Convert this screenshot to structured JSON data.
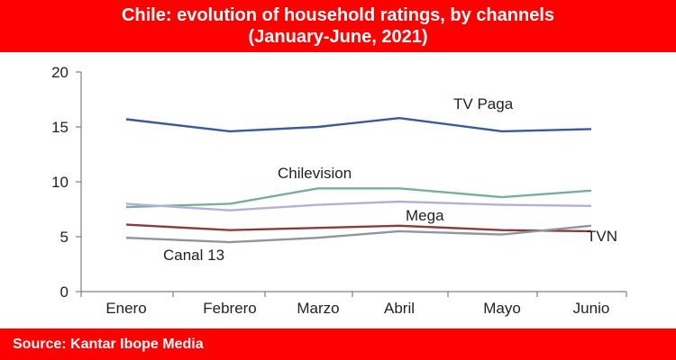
{
  "header": {
    "title_line1": "Chile: evolution of household ratings, by channels",
    "title_line2": "(January-June, 2021)"
  },
  "footer": {
    "source": "Source: Kantar Ibope Media"
  },
  "colors": {
    "banner": "#ff0000",
    "axis": "#808080"
  },
  "chart_data": {
    "type": "line",
    "categories": [
      "Enero",
      "Febrero",
      "Marzo",
      "Abril",
      "Mayo",
      "Junio"
    ],
    "ylim": [
      0,
      20
    ],
    "yticks": [
      "0",
      "5",
      "10",
      "15",
      "20"
    ],
    "grid": false,
    "legend": "inline labels",
    "series": [
      {
        "name": "TV Paga",
        "color": "#3b5a94",
        "values": [
          15.7,
          14.6,
          15.0,
          15.8,
          14.6,
          14.8
        ]
      },
      {
        "name": "Chilevision",
        "color": "#7aae98",
        "values": [
          7.7,
          8.0,
          9.4,
          9.4,
          8.6,
          9.2
        ]
      },
      {
        "name": "Mega",
        "color": "#b3b0d8",
        "values": [
          8.0,
          7.4,
          7.9,
          8.2,
          7.9,
          7.8
        ]
      },
      {
        "name": "TVN",
        "color": "#8c3a3a",
        "values": [
          6.1,
          5.6,
          5.8,
          6.0,
          5.6,
          5.5
        ]
      },
      {
        "name": "Canal 13",
        "color": "#8f959c",
        "values": [
          4.9,
          4.5,
          4.9,
          5.5,
          5.2,
          6.0
        ]
      }
    ]
  }
}
